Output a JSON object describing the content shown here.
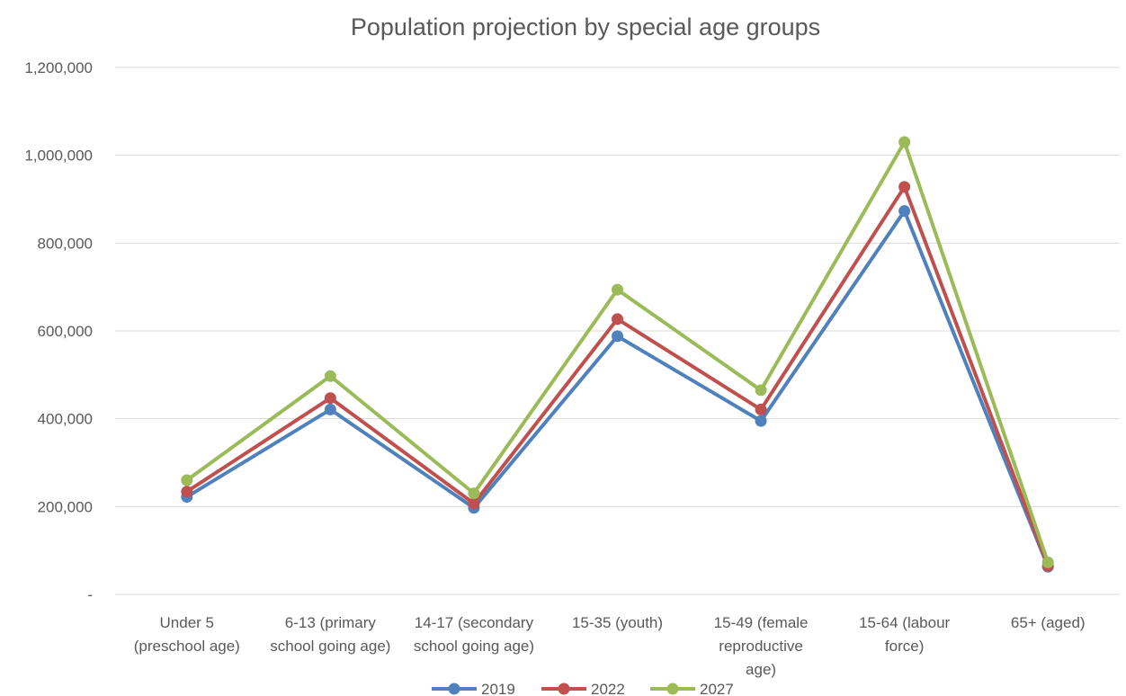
{
  "chart_data": {
    "type": "line",
    "title": "Population projection by special age groups",
    "xlabel": "",
    "ylabel": "",
    "ylim": [
      0,
      1200000
    ],
    "yticks": [
      0,
      200000,
      400000,
      600000,
      800000,
      1000000,
      1200000
    ],
    "ytick_labels": [
      "-",
      "200,000",
      "400,000",
      "600,000",
      "800,000",
      "1,000,000",
      "1,200,000"
    ],
    "grid": true,
    "legend_position": "bottom",
    "categories": [
      [
        "Under 5",
        "(preschool age)"
      ],
      [
        "6-13 (primary",
        "school going age)"
      ],
      [
        "14-17 (secondary",
        "school going age)"
      ],
      [
        "15-35 (youth)"
      ],
      [
        "15-49 (female",
        "reproductive",
        "age)"
      ],
      [
        "15-64 (labour",
        "force)"
      ],
      [
        "65+ (aged)"
      ]
    ],
    "series": [
      {
        "name": "2019",
        "color": "#4F81BD",
        "values": [
          222000,
          421000,
          197000,
          588000,
          395000,
          873000,
          63000
        ]
      },
      {
        "name": "2022",
        "color": "#C0504D",
        "values": [
          234000,
          447000,
          207000,
          627000,
          421000,
          928000,
          65000
        ]
      },
      {
        "name": "2027",
        "color": "#9BBB59",
        "values": [
          260000,
          497000,
          230000,
          694000,
          465000,
          1030000,
          73000
        ]
      }
    ]
  }
}
